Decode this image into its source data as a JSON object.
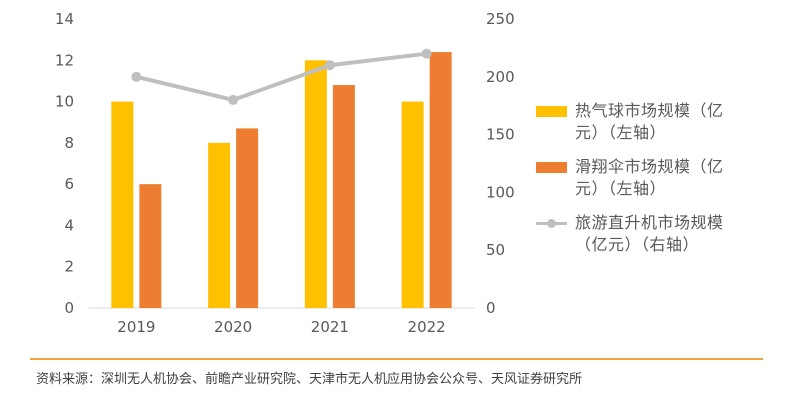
{
  "chart_data": {
    "type": "bar",
    "categories": [
      "2019",
      "2020",
      "2021",
      "2022"
    ],
    "series": [
      {
        "name": "热气球市场规模（亿元）（左轴）",
        "type": "bar",
        "axis": "left",
        "color": "#FFC000",
        "values": [
          10,
          8,
          12,
          10
        ]
      },
      {
        "name": "滑翔伞市场规模（亿元）（左轴）",
        "type": "bar",
        "axis": "right_no",
        "color": "#ED7D31",
        "values": [
          6,
          8.7,
          10.8,
          12.4
        ]
      },
      {
        "name": "旅游直升机市场规模（亿元）（右轴）",
        "type": "line",
        "axis": "right",
        "color": "#BFBFBF",
        "values": [
          200,
          180,
          210,
          220
        ]
      }
    ],
    "left_axis": {
      "ylim": [
        0,
        14
      ],
      "ticks": [
        "0",
        "2",
        "4",
        "6",
        "8",
        "10",
        "12",
        "14"
      ]
    },
    "right_axis": {
      "ylim": [
        0,
        250
      ],
      "ticks": [
        "0",
        "50",
        "100",
        "150",
        "200",
        "250"
      ]
    },
    "grid": false,
    "legend_position": "right"
  },
  "legend": [
    {
      "line1": "热气球市场规模（亿",
      "line2": "元）（左轴）",
      "kind": "box",
      "color": "#FFC000"
    },
    {
      "line1": "滑翔伞市场规模（亿",
      "line2": "元）（左轴）",
      "kind": "box",
      "color": "#ED7D31"
    },
    {
      "line1": "旅游直升机市场规模",
      "line2": "（亿元）（右轴）",
      "kind": "line",
      "color": "#BFBFBF"
    }
  ],
  "source": "资料来源：深圳无人机协会、前瞻产业研究院、天津市无人机应用协会公众号、天风证券研究所",
  "rule_color": "#F0A33A"
}
